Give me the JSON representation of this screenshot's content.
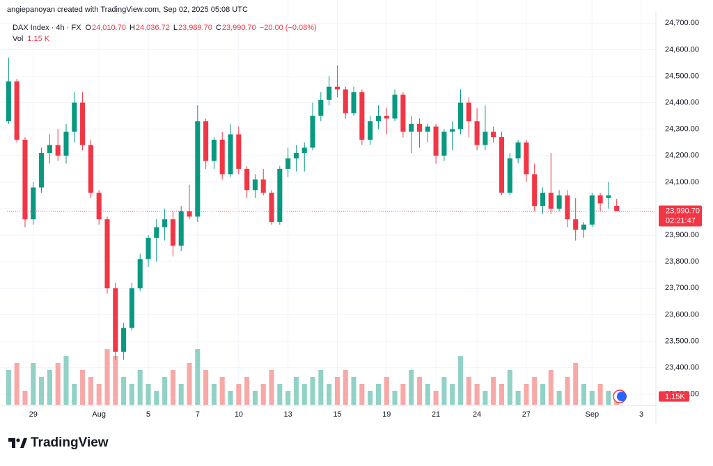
{
  "header": {
    "credit": "angiepanoyan created with TradingView.com, Sep 02, 2025 05:08 UTC",
    "symbol": "DAX Index · 4h · FX",
    "o_key": "O",
    "o": "24,010.70",
    "h_key": "H",
    "h": "24,036.72",
    "l_key": "L",
    "l": "23,989.70",
    "c_key": "C",
    "c": "23,990.70",
    "change": "−20.00 (−0.08%)",
    "vol_key": "Vol",
    "vol": "1.15 K"
  },
  "footer": {
    "brand": "TradingView"
  },
  "chart_data": {
    "type": "candlestick",
    "up_color": "#089981",
    "down_color": "#f23645",
    "up_volume_color": "#92d2c6",
    "down_volume_color": "#f7a9a7",
    "grid": true,
    "open": [
      24330,
      24480,
      24260,
      23960,
      24080,
      24210,
      24240,
      24200,
      24290,
      24400,
      24240,
      24060,
      23960,
      23700,
      23460,
      23550,
      23700,
      23810,
      23890,
      23930,
      23960,
      23860,
      23990,
      23970,
      24330,
      24180,
      24260,
      24130,
      24280,
      24150,
      24070,
      24110,
      24060,
      23950,
      24150,
      24190,
      24210,
      24230,
      24350,
      24410,
      24460,
      24450,
      24360,
      24440,
      24260,
      24330,
      24350,
      24340,
      24430,
      24290,
      24320,
      24290,
      24310,
      24200,
      24290,
      24300,
      24400,
      24330,
      24240,
      24290,
      24270,
      24060,
      24190,
      24250,
      24130,
      24010,
      24060,
      24000,
      24050,
      23960,
      23920,
      23940,
      24050,
      24040,
      24010.7
    ],
    "high": [
      24570,
      24490,
      24270,
      24100,
      24230,
      24280,
      24300,
      24320,
      24440,
      24440,
      24260,
      24070,
      23970,
      23720,
      23570,
      23720,
      23830,
      23900,
      23960,
      24000,
      23990,
      24010,
      24090,
      24390,
      24340,
      24270,
      24290,
      24320,
      24310,
      24160,
      24130,
      24150,
      24070,
      24160,
      24230,
      24240,
      24250,
      24400,
      24440,
      24500,
      24540,
      24460,
      24460,
      24450,
      24350,
      24390,
      24380,
      24450,
      24440,
      24350,
      24340,
      24320,
      24320,
      24300,
      24330,
      24450,
      24420,
      24380,
      24390,
      24310,
      24290,
      24210,
      24260,
      24260,
      24170,
      24080,
      24210,
      24070,
      24070,
      24040,
      23950,
      24060,
      24060,
      24100,
      24036.72
    ],
    "low": [
      24320,
      24250,
      23930,
      23940,
      24060,
      24170,
      24180,
      24170,
      24250,
      24220,
      24040,
      23940,
      23680,
      23430,
      23430,
      23540,
      23690,
      23780,
      23800,
      23880,
      23820,
      23840,
      23960,
      23950,
      24150,
      24150,
      24110,
      24120,
      24130,
      24040,
      24040,
      24050,
      23940,
      23940,
      24120,
      24140,
      24140,
      24220,
      24330,
      24390,
      24420,
      24340,
      24350,
      24240,
      24240,
      24300,
      24280,
      24330,
      24270,
      24210,
      24230,
      24250,
      24170,
      24180,
      24220,
      24280,
      24270,
      24220,
      24220,
      24250,
      24050,
      24050,
      24170,
      24100,
      23990,
      23980,
      23980,
      23990,
      23930,
      23880,
      23890,
      23930,
      23990,
      24000,
      23989.7
    ],
    "close": [
      24480,
      24260,
      23960,
      24080,
      24210,
      24240,
      24200,
      24290,
      24400,
      24240,
      24060,
      23960,
      23700,
      23460,
      23550,
      23700,
      23810,
      23890,
      23930,
      23960,
      23860,
      23990,
      23970,
      24330,
      24180,
      24260,
      24130,
      24280,
      24150,
      24070,
      24110,
      24060,
      23950,
      24150,
      24190,
      24210,
      24230,
      24350,
      24410,
      24460,
      24450,
      24360,
      24440,
      24260,
      24330,
      24350,
      24340,
      24430,
      24290,
      24320,
      24290,
      24310,
      24200,
      24290,
      24300,
      24400,
      24330,
      24240,
      24290,
      24270,
      24060,
      24190,
      24250,
      24130,
      24010,
      24060,
      24000,
      24050,
      23960,
      23920,
      23940,
      24050,
      24020,
      24050,
      23990.7
    ],
    "volume": [
      5,
      6,
      2,
      6,
      4,
      5,
      6,
      7,
      3,
      5,
      4,
      3,
      8,
      7,
      4,
      3,
      5,
      3,
      2,
      4,
      5,
      3,
      6,
      8,
      5,
      3,
      4,
      2,
      3,
      4,
      2,
      3,
      5,
      3,
      2,
      4,
      3,
      4,
      5,
      3,
      4,
      5,
      4,
      3,
      2,
      3,
      4,
      2,
      3,
      5,
      4,
      3,
      2,
      4,
      3,
      7,
      4,
      3,
      2,
      4,
      3,
      5,
      2,
      3,
      4,
      3,
      5,
      2,
      4,
      6,
      3,
      2,
      3,
      2,
      1.15
    ],
    "volume_label": "1.15K",
    "vlim": [
      0,
      10
    ],
    "last_price_label": "23,990.70",
    "countdown": "02:21:47",
    "ylim": [
      23260,
      24740
    ],
    "yticks": [
      {
        "value": 23300,
        "label": "23,300.00"
      },
      {
        "value": 23400,
        "label": "23,400.00"
      },
      {
        "value": 23500,
        "label": "23,500.00"
      },
      {
        "value": 23600,
        "label": "23,600.00"
      },
      {
        "value": 23700,
        "label": "23,700.00"
      },
      {
        "value": 23800,
        "label": "23,800.00"
      },
      {
        "value": 23900,
        "label": "23,900.00"
      },
      {
        "value": 24000,
        "label": "24,000.00"
      },
      {
        "value": 24100,
        "label": "24,100.00"
      },
      {
        "value": 24200,
        "label": "24,200.00"
      },
      {
        "value": 24300,
        "label": "24,300.00"
      },
      {
        "value": 24400,
        "label": "24,400.00"
      },
      {
        "value": 24500,
        "label": "24,500.00"
      },
      {
        "value": 24600,
        "label": "24,600.00"
      },
      {
        "value": 24700,
        "label": "24,700.00"
      }
    ],
    "xlim": [
      -0.2,
      78.6
    ],
    "xticks": [
      {
        "value": 3,
        "label": "29"
      },
      {
        "value": 11,
        "label": "Aug"
      },
      {
        "value": 17,
        "label": "5"
      },
      {
        "value": 23,
        "label": "7"
      },
      {
        "value": 28,
        "label": "10"
      },
      {
        "value": 34,
        "label": "13"
      },
      {
        "value": 40,
        "label": "15"
      },
      {
        "value": 46,
        "label": "19"
      },
      {
        "value": 52,
        "label": "21"
      },
      {
        "value": 57,
        "label": "24"
      },
      {
        "value": 63,
        "label": "27"
      },
      {
        "value": 71,
        "label": "Sep"
      },
      {
        "value": 77,
        "label": "3"
      }
    ]
  }
}
